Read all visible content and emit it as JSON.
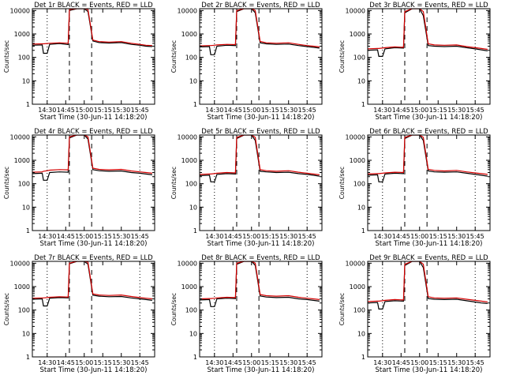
{
  "figure": {
    "background": "#ffffff",
    "axis_color": "#000000",
    "events_color": "#000000",
    "lld_color": "#d40000"
  },
  "chart_data": [
    {
      "type": "line",
      "title": "Det 1r BLACK = Events, RED = LLD",
      "xlabel": "Start Time (30-Jun-11 14:18:20)",
      "ylabel": "Counts/sec",
      "x_ticks": [
        "14:30",
        "14:45",
        "15:00",
        "15:15",
        "15:30",
        "15:45"
      ],
      "y_ticks": [
        "1",
        "10",
        "100",
        "1000",
        "10000"
      ],
      "y_scale": "log",
      "ylim": [
        1,
        12000
      ],
      "x": [
        "14:18",
        "14:26",
        "14:27",
        "14:30",
        "14:32",
        "14:40",
        "14:47",
        "14:48",
        "14:54",
        "15:00",
        "15:03",
        "15:07",
        "15:12",
        "15:20",
        "15:30",
        "15:38",
        "15:45",
        "15:50",
        "15:55"
      ],
      "series": [
        {
          "name": "Events",
          "color": "#000000",
          "values": [
            330,
            340,
            150,
            150,
            360,
            390,
            350,
            10000,
            12000,
            12000,
            9000,
            500,
            430,
            410,
            430,
            360,
            330,
            300,
            290
          ]
        },
        {
          "name": "LLD",
          "color": "#d40000",
          "values": [
            370,
            380,
            380,
            390,
            400,
            420,
            400,
            11000,
            12000,
            12000,
            11000,
            550,
            470,
            450,
            470,
            400,
            360,
            330,
            320
          ]
        }
      ]
    },
    {
      "type": "line",
      "title": "Det 2r BLACK = Events, RED = LLD",
      "xlabel": "Start Time (30-Jun-11 14:18:20)",
      "ylabel": "Counts/sec",
      "x_ticks": [
        "14:30",
        "14:45",
        "15:00",
        "15:15",
        "15:30",
        "15:45"
      ],
      "y_ticks": [
        "1",
        "10",
        "100",
        "1000",
        "10000"
      ],
      "y_scale": "log",
      "ylim": [
        1,
        12000
      ],
      "x": [
        "14:18",
        "14:26",
        "14:27",
        "14:30",
        "14:32",
        "14:40",
        "14:47",
        "14:48",
        "14:54",
        "15:00",
        "15:03",
        "15:07",
        "15:12",
        "15:20",
        "15:30",
        "15:38",
        "15:45",
        "15:50",
        "15:55"
      ],
      "series": [
        {
          "name": "Events",
          "color": "#000000",
          "values": [
            280,
            290,
            130,
            130,
            300,
            330,
            320,
            9000,
            12000,
            12000,
            8000,
            420,
            380,
            360,
            370,
            320,
            290,
            270,
            250
          ]
        },
        {
          "name": "LLD",
          "color": "#d40000",
          "values": [
            310,
            320,
            320,
            330,
            340,
            360,
            350,
            10000,
            12000,
            12000,
            10000,
            480,
            420,
            400,
            420,
            360,
            320,
            300,
            280
          ]
        }
      ]
    },
    {
      "type": "line",
      "title": "Det 3r BLACK = Events, RED = LLD",
      "xlabel": "Start Time (30-Jun-11 14:18:20)",
      "ylabel": "Counts/sec",
      "x_ticks": [
        "14:30",
        "14:45",
        "15:00",
        "15:15",
        "15:30",
        "15:45"
      ],
      "y_ticks": [
        "1",
        "10",
        "100",
        "1000",
        "10000"
      ],
      "y_scale": "log",
      "ylim": [
        1,
        12000
      ],
      "x": [
        "14:18",
        "14:26",
        "14:27",
        "14:30",
        "14:32",
        "14:40",
        "14:47",
        "14:48",
        "14:54",
        "15:00",
        "15:03",
        "15:07",
        "15:12",
        "15:20",
        "15:30",
        "15:38",
        "15:45",
        "15:50",
        "15:55"
      ],
      "series": [
        {
          "name": "Events",
          "color": "#000000",
          "values": [
            200,
            210,
            110,
            110,
            230,
            260,
            250,
            8000,
            12000,
            12000,
            6000,
            320,
            300,
            290,
            300,
            260,
            230,
            210,
            190
          ]
        },
        {
          "name": "LLD",
          "color": "#d40000",
          "values": [
            230,
            240,
            240,
            250,
            260,
            280,
            270,
            9000,
            12000,
            12000,
            9000,
            380,
            340,
            330,
            340,
            290,
            260,
            240,
            220
          ]
        }
      ]
    },
    {
      "type": "line",
      "title": "Det 4r BLACK = Events, RED = LLD",
      "xlabel": "Start Time (30-Jun-11 14:18:20)",
      "ylabel": "Counts/sec",
      "x_ticks": [
        "14:30",
        "14:45",
        "15:00",
        "15:15",
        "15:30",
        "15:45"
      ],
      "y_ticks": [
        "1",
        "10",
        "100",
        "1000",
        "10000"
      ],
      "y_scale": "log",
      "ylim": [
        1,
        12000
      ],
      "x": [
        "14:18",
        "14:26",
        "14:27",
        "14:30",
        "14:32",
        "14:40",
        "14:47",
        "14:48",
        "14:54",
        "15:00",
        "15:03",
        "15:07",
        "15:12",
        "15:20",
        "15:30",
        "15:38",
        "15:45",
        "15:50",
        "15:55"
      ],
      "series": [
        {
          "name": "Events",
          "color": "#000000",
          "values": [
            270,
            280,
            140,
            140,
            300,
            320,
            310,
            9000,
            12000,
            12000,
            8000,
            400,
            360,
            340,
            350,
            300,
            280,
            260,
            240
          ]
        },
        {
          "name": "LLD",
          "color": "#d40000",
          "values": [
            310,
            320,
            340,
            360,
            380,
            400,
            390,
            10000,
            12000,
            12000,
            10000,
            460,
            410,
            390,
            410,
            350,
            320,
            300,
            280
          ]
        }
      ]
    },
    {
      "type": "line",
      "title": "Det 5r BLACK = Events, RED = LLD",
      "xlabel": "Start Time (30-Jun-11 14:18:20)",
      "ylabel": "Counts/sec",
      "x_ticks": [
        "14:30",
        "14:45",
        "15:00",
        "15:15",
        "15:30",
        "15:45"
      ],
      "y_ticks": [
        "1",
        "10",
        "100",
        "1000",
        "10000"
      ],
      "y_scale": "log",
      "ylim": [
        1,
        12000
      ],
      "x": [
        "14:18",
        "14:26",
        "14:27",
        "14:30",
        "14:32",
        "14:40",
        "14:47",
        "14:48",
        "14:54",
        "15:00",
        "15:03",
        "15:07",
        "15:12",
        "15:20",
        "15:30",
        "15:38",
        "15:45",
        "15:50",
        "15:55"
      ],
      "series": [
        {
          "name": "Events",
          "color": "#000000",
          "values": [
            220,
            230,
            120,
            120,
            250,
            270,
            260,
            8500,
            12000,
            12000,
            7000,
            340,
            320,
            300,
            310,
            270,
            250,
            230,
            210
          ]
        },
        {
          "name": "LLD",
          "color": "#d40000",
          "values": [
            250,
            260,
            260,
            270,
            280,
            300,
            290,
            9500,
            12000,
            12000,
            9500,
            400,
            360,
            340,
            360,
            310,
            280,
            260,
            240
          ]
        }
      ]
    },
    {
      "type": "line",
      "title": "Det 6r BLACK = Events, RED = LLD",
      "xlabel": "Start Time (30-Jun-11 14:18:20)",
      "ylabel": "Counts/sec",
      "x_ticks": [
        "14:30",
        "14:45",
        "15:00",
        "15:15",
        "15:30",
        "15:45"
      ],
      "y_ticks": [
        "1",
        "10",
        "100",
        "1000",
        "10000"
      ],
      "y_scale": "log",
      "ylim": [
        1,
        12000
      ],
      "x": [
        "14:18",
        "14:26",
        "14:27",
        "14:30",
        "14:32",
        "14:40",
        "14:47",
        "14:48",
        "14:54",
        "15:00",
        "15:03",
        "15:07",
        "15:12",
        "15:20",
        "15:30",
        "15:38",
        "15:45",
        "15:50",
        "15:55"
      ],
      "series": [
        {
          "name": "Events",
          "color": "#000000",
          "values": [
            230,
            240,
            120,
            120,
            260,
            280,
            270,
            8500,
            12000,
            12000,
            7000,
            350,
            320,
            310,
            320,
            280,
            250,
            230,
            210
          ]
        },
        {
          "name": "LLD",
          "color": "#d40000",
          "values": [
            260,
            270,
            270,
            280,
            290,
            310,
            300,
            9500,
            12000,
            12000,
            9500,
            410,
            370,
            350,
            370,
            320,
            290,
            270,
            250
          ]
        }
      ]
    },
    {
      "type": "line",
      "title": "Det 7r BLACK = Events, RED = LLD",
      "xlabel": "Start Time (30-Jun-11 14:18:20)",
      "ylabel": "Counts/sec",
      "x_ticks": [
        "14:30",
        "14:45",
        "15:00",
        "15:15",
        "15:30",
        "15:45"
      ],
      "y_ticks": [
        "1",
        "10",
        "100",
        "1000",
        "10000"
      ],
      "y_scale": "log",
      "ylim": [
        1,
        12000
      ],
      "x": [
        "14:18",
        "14:26",
        "14:27",
        "14:30",
        "14:32",
        "14:40",
        "14:47",
        "14:48",
        "14:54",
        "15:00",
        "15:03",
        "15:07",
        "15:12",
        "15:20",
        "15:30",
        "15:38",
        "15:45",
        "15:50",
        "15:55"
      ],
      "series": [
        {
          "name": "Events",
          "color": "#000000",
          "values": [
            290,
            300,
            150,
            150,
            320,
            340,
            330,
            9500,
            12000,
            12000,
            9000,
            430,
            390,
            370,
            380,
            330,
            300,
            280,
            260
          ]
        },
        {
          "name": "LLD",
          "color": "#d40000",
          "values": [
            320,
            330,
            330,
            340,
            350,
            370,
            360,
            10000,
            12000,
            12000,
            11000,
            490,
            440,
            420,
            440,
            380,
            340,
            320,
            300
          ]
        }
      ]
    },
    {
      "type": "line",
      "title": "Det 8r BLACK = Events, RED = LLD",
      "xlabel": "Start Time (30-Jun-11 14:18:20)",
      "ylabel": "Counts/sec",
      "x_ticks": [
        "14:30",
        "14:45",
        "15:00",
        "15:15",
        "15:30",
        "15:45"
      ],
      "y_ticks": [
        "1",
        "10",
        "100",
        "1000",
        "10000"
      ],
      "y_scale": "log",
      "ylim": [
        1,
        12000
      ],
      "x": [
        "14:18",
        "14:26",
        "14:27",
        "14:30",
        "14:32",
        "14:40",
        "14:47",
        "14:48",
        "14:54",
        "15:00",
        "15:03",
        "15:07",
        "15:12",
        "15:20",
        "15:30",
        "15:38",
        "15:45",
        "15:50",
        "15:55"
      ],
      "series": [
        {
          "name": "Events",
          "color": "#000000",
          "values": [
            270,
            280,
            140,
            140,
            300,
            320,
            310,
            9000,
            12000,
            12000,
            8000,
            400,
            360,
            340,
            350,
            300,
            280,
            260,
            240
          ]
        },
        {
          "name": "LLD",
          "color": "#d40000",
          "values": [
            300,
            310,
            310,
            320,
            330,
            350,
            340,
            10000,
            12000,
            12000,
            10000,
            460,
            410,
            390,
            410,
            350,
            320,
            300,
            280
          ]
        }
      ]
    },
    {
      "type": "line",
      "title": "Det 9r BLACK = Events, RED = LLD",
      "xlabel": "Start Time (30-Jun-11 14:18:20)",
      "ylabel": "Counts/sec",
      "x_ticks": [
        "14:30",
        "14:45",
        "15:00",
        "15:15",
        "15:30",
        "15:45"
      ],
      "y_ticks": [
        "1",
        "10",
        "100",
        "1000",
        "10000"
      ],
      "y_scale": "log",
      "ylim": [
        1,
        12000
      ],
      "x": [
        "14:18",
        "14:26",
        "14:27",
        "14:30",
        "14:32",
        "14:40",
        "14:47",
        "14:48",
        "14:54",
        "15:00",
        "15:03",
        "15:07",
        "15:12",
        "15:20",
        "15:30",
        "15:38",
        "15:45",
        "15:50",
        "15:55"
      ],
      "series": [
        {
          "name": "Events",
          "color": "#000000",
          "values": [
            200,
            210,
            110,
            110,
            230,
            250,
            240,
            8000,
            12000,
            12000,
            6500,
            310,
            290,
            280,
            290,
            250,
            220,
            200,
            190
          ]
        },
        {
          "name": "LLD",
          "color": "#d40000",
          "values": [
            230,
            240,
            240,
            250,
            260,
            280,
            270,
            9000,
            12000,
            12000,
            9000,
            370,
            330,
            320,
            330,
            290,
            260,
            240,
            220
          ]
        }
      ]
    }
  ]
}
